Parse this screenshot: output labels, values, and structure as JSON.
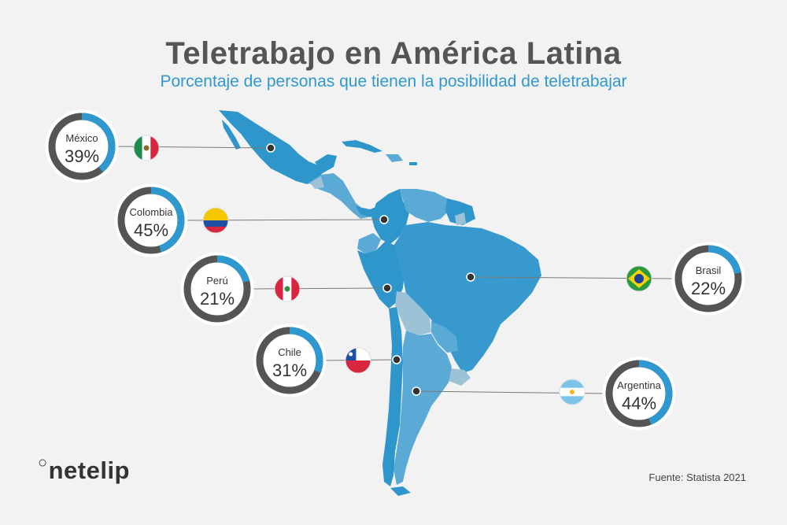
{
  "header": {
    "title": "Teletrabajo en América Latina",
    "subtitle": "Porcentaje de personas que tienen la posibilidad de teletrabajar"
  },
  "footer": {
    "source": "Fuente: Statista 2021",
    "logo_text": "netelip"
  },
  "colors": {
    "ring_accent": "#2f98cf",
    "ring_base": "#555555",
    "map_dark": "#2f96cc",
    "map_mid": "#5aaad5",
    "map_light": "#9cc2d6"
  },
  "chart_data": {
    "type": "donut",
    "unit": "%",
    "categories": [
      "México",
      "Colombia",
      "Perú",
      "Chile",
      "Brasil",
      "Argentina"
    ],
    "values": [
      39,
      45,
      21,
      31,
      22,
      44
    ],
    "labels": [
      "39%",
      "45%",
      "21%",
      "31%",
      "22%",
      "44%"
    ],
    "flags": [
      "mexico-flag-icon",
      "colombia-flag-icon",
      "peru-flag-icon",
      "chile-flag-icon",
      "brasil-flag-icon",
      "argentina-flag-icon"
    ]
  }
}
